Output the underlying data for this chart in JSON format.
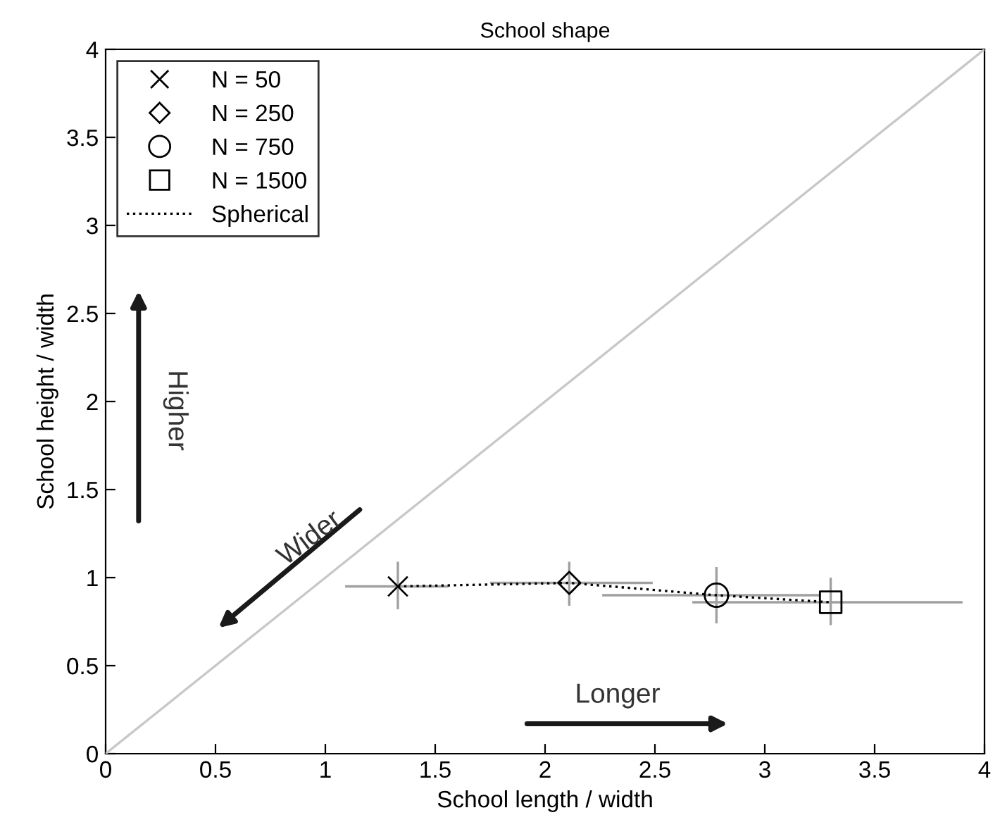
{
  "chart_data": {
    "type": "scatter",
    "title": "School shape",
    "xlabel": "School length / width",
    "ylabel": "School height / width",
    "xlim": [
      0,
      4
    ],
    "ylim": [
      0,
      4
    ],
    "xticks": [
      0,
      0.5,
      1,
      1.5,
      2,
      2.5,
      3,
      3.5,
      4
    ],
    "yticks": [
      0,
      0.5,
      1,
      1.5,
      2,
      2.5,
      3,
      3.5,
      4
    ],
    "grid": false,
    "legend": "top left",
    "series": [
      {
        "name": "N = 50",
        "marker": "cross",
        "color": "#000000",
        "x": [
          1.33
        ],
        "values": [
          0.95
        ],
        "errors": [
          [
            0.82,
            1.09
          ]
        ],
        "xerrors": [
          [
            1.09,
            1.56
          ]
        ]
      },
      {
        "name": "N = 250",
        "marker": "diamond",
        "color": "#000000",
        "x": [
          2.11
        ],
        "values": [
          0.97
        ],
        "errors": [
          [
            0.84,
            1.09
          ]
        ],
        "xerrors": [
          [
            1.75,
            2.49
          ]
        ]
      },
      {
        "name": "N = 750",
        "marker": "circle",
        "color": "#000000",
        "x": [
          2.78
        ],
        "values": [
          0.9
        ],
        "errors": [
          [
            0.74,
            1.06
          ]
        ],
        "xerrors": [
          [
            2.26,
            3.25
          ]
        ]
      },
      {
        "name": "N = 1500",
        "marker": "square",
        "color": "#000000",
        "x": [
          3.3
        ],
        "values": [
          0.86
        ],
        "errors": [
          [
            0.73,
            1.0
          ]
        ],
        "xerrors": [
          [
            2.67,
            3.9
          ]
        ]
      },
      {
        "name": "Spherical",
        "type": "line",
        "line_style": "dotted",
        "marker": "none",
        "color": "#000000",
        "x": [
          1.33,
          2.11,
          2.78,
          3.3
        ],
        "values": [
          0.95,
          0.97,
          0.9,
          0.86
        ]
      },
      {
        "type": "line",
        "line_style": "solid",
        "marker": "none",
        "color": "#c8c8c8",
        "x": [
          0,
          4
        ],
        "values": [
          0,
          4
        ]
      }
    ],
    "annotations": [
      "Higher",
      "Wider",
      "Longer"
    ]
  }
}
